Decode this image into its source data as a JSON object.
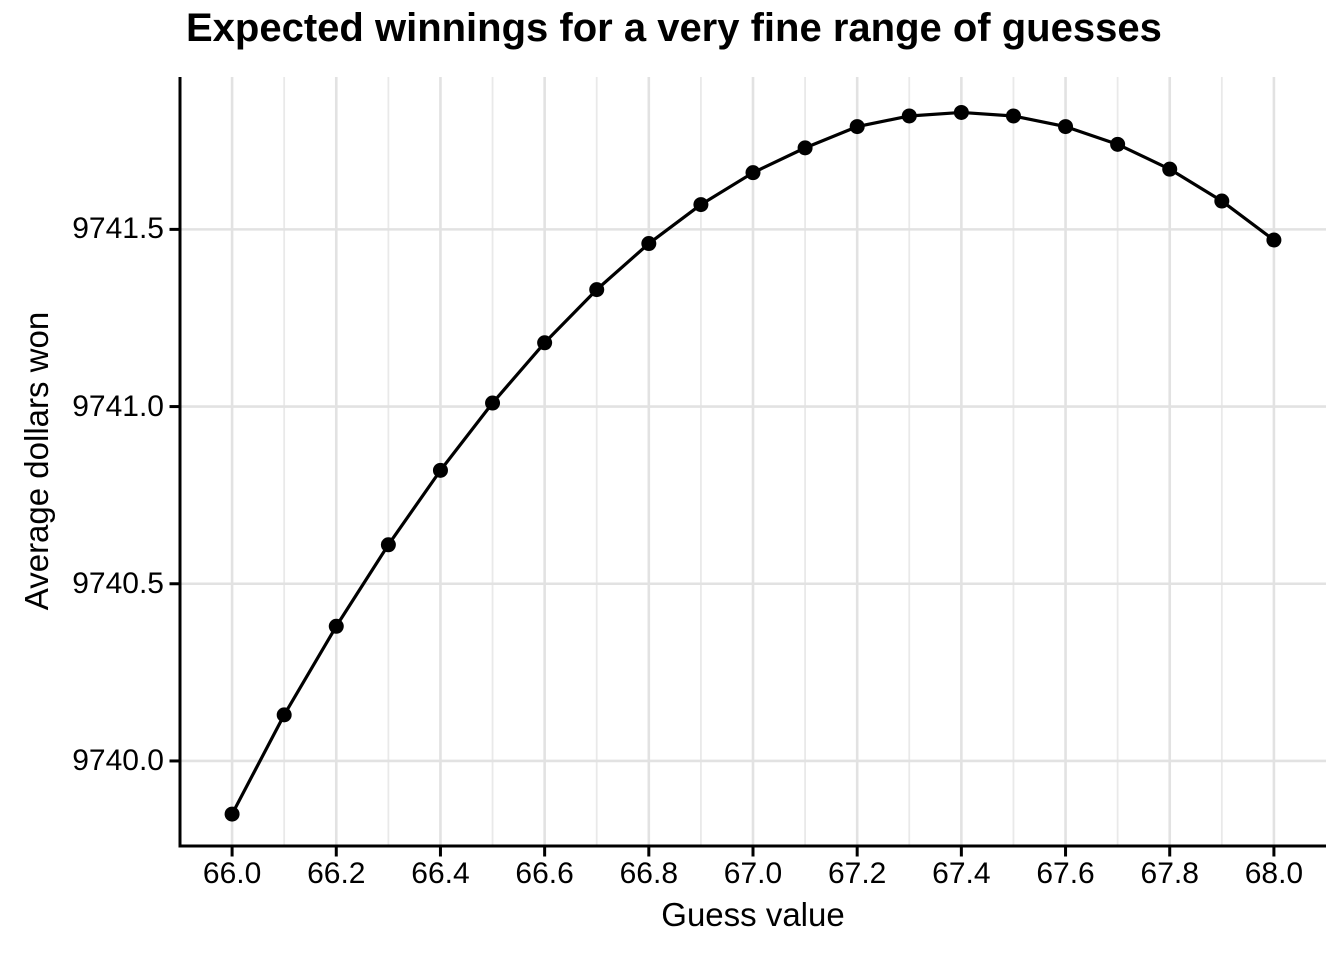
{
  "chart_data": {
    "type": "line",
    "title": "Expected winnings for a very fine range of guesses",
    "xlabel": "Guess value",
    "ylabel": "Average dollars won",
    "series_name": "Expected winnings",
    "x": [
      66.0,
      66.1,
      66.2,
      66.3,
      66.4,
      66.5,
      66.6,
      66.7,
      66.8,
      66.9,
      67.0,
      67.1,
      67.2,
      67.3,
      67.4,
      67.5,
      67.6,
      67.7,
      67.8,
      67.9,
      68.0
    ],
    "y": [
      9739.85,
      9740.13,
      9740.38,
      9740.61,
      9740.82,
      9741.01,
      9741.18,
      9741.33,
      9741.46,
      9741.57,
      9741.66,
      9741.73,
      9741.79,
      9741.82,
      9741.83,
      9741.82,
      9741.79,
      9741.74,
      9741.67,
      9741.58,
      9741.47
    ],
    "peak": {
      "x": 67.4,
      "y": 9741.83
    },
    "x_ticks": [
      66.0,
      66.2,
      66.4,
      66.6,
      66.8,
      67.0,
      67.2,
      67.4,
      67.6,
      67.8,
      68.0
    ],
    "x_tick_labels": [
      "66.0",
      "66.2",
      "66.4",
      "66.6",
      "66.8",
      "67.0",
      "67.2",
      "67.4",
      "67.6",
      "67.8",
      "68.0"
    ],
    "y_ticks": [
      9740.0,
      9740.5,
      9741.0,
      9741.5
    ],
    "y_tick_labels": [
      "9740.0",
      "9740.5",
      "9741.0",
      "9741.5"
    ],
    "xlim": [
      65.9,
      68.1
    ],
    "ylim": [
      9739.76,
      9741.93
    ],
    "grid": {
      "vertical_major": true,
      "vertical_minor": true,
      "horizontal_major": true,
      "horizontal_minor": false
    },
    "legend": "none",
    "marker": "filled-circle",
    "colors": {
      "line": "#000000",
      "point": "#000000",
      "grid_major": "#E2E2E2",
      "grid_minor": "#E9E9E9",
      "axis": "#000000",
      "text": "#000000",
      "background": "#FFFFFF"
    }
  }
}
